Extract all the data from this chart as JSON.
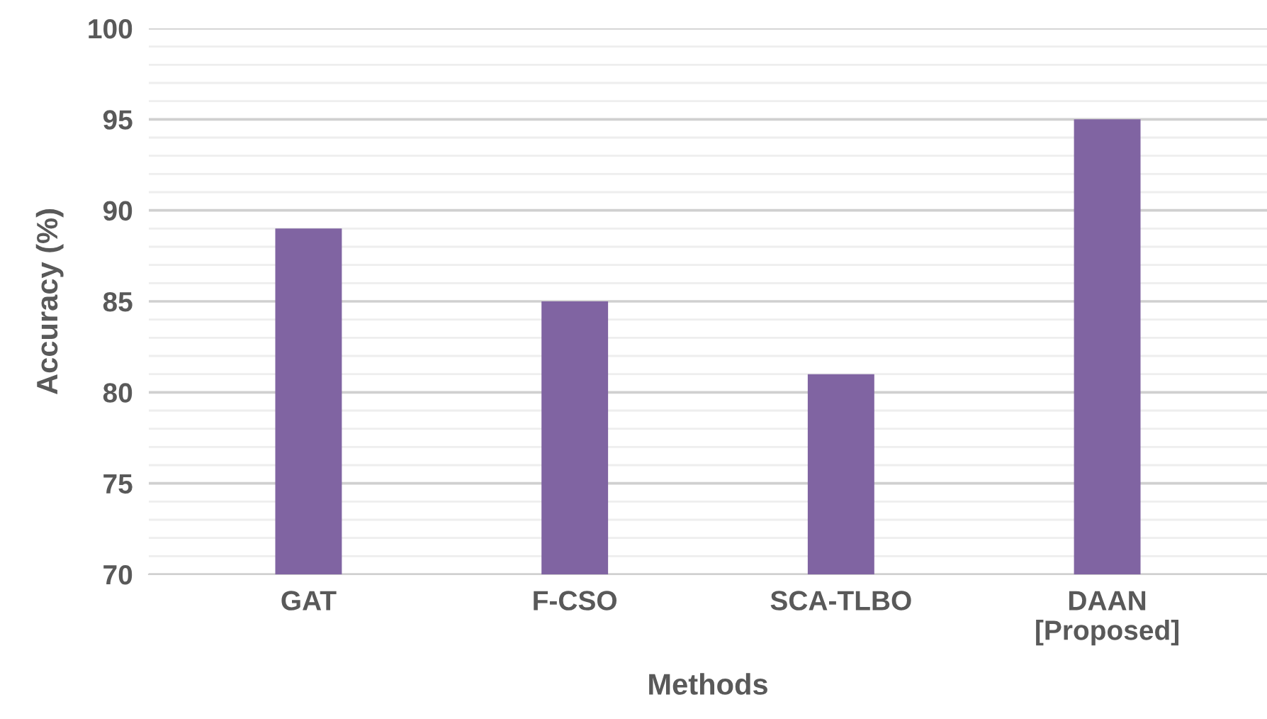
{
  "chart_data": {
    "type": "bar",
    "xlabel": "Methods",
    "ylabel": "Accuracy (%)",
    "categories": [
      "GAT",
      "F-CSO",
      "SCA-TLBO",
      "DAAN\n[Proposed]"
    ],
    "values": [
      89,
      85,
      81,
      95
    ],
    "color": "#8064a2",
    "ylim": [
      70,
      100
    ],
    "yticks": [
      70,
      75,
      80,
      85,
      90,
      95,
      100
    ],
    "grid": "y",
    "legend": false
  }
}
